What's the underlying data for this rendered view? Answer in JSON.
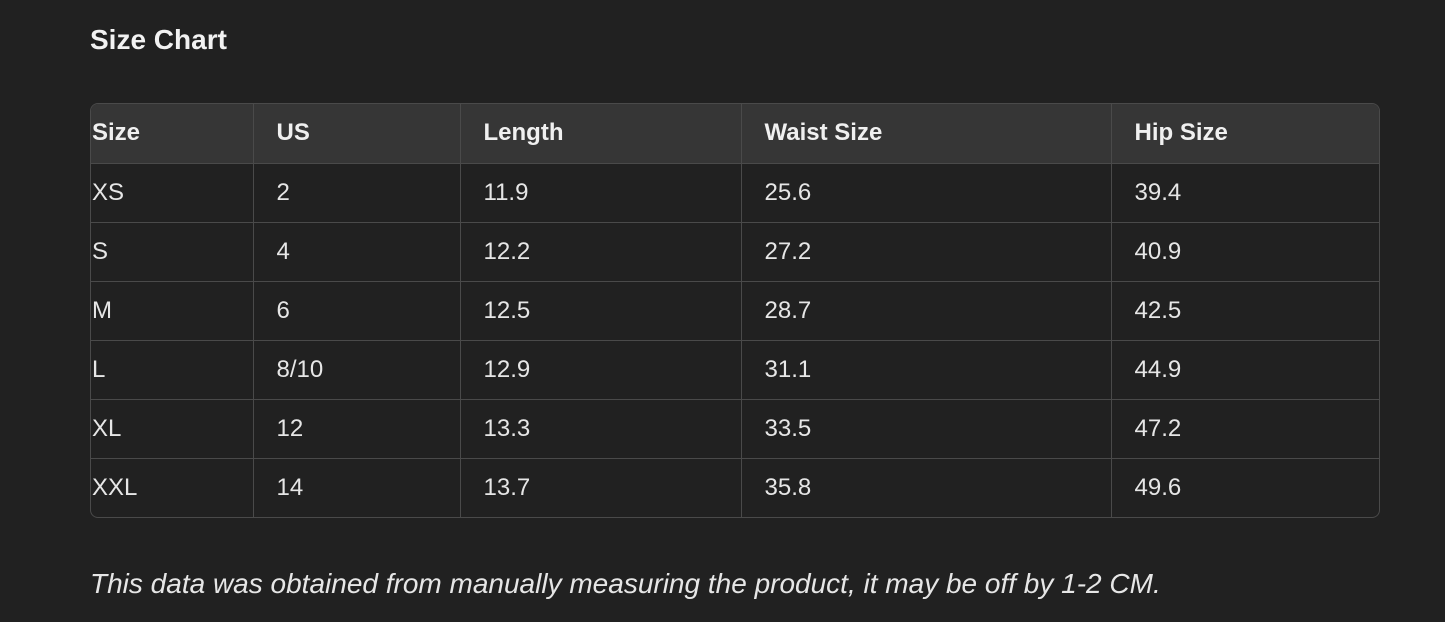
{
  "title": "Size Chart",
  "table": {
    "headers": [
      "Size",
      "US",
      "Length",
      "Waist Size",
      "Hip Size"
    ],
    "rows": [
      [
        "XS",
        "2",
        "11.9",
        "25.6",
        "39.4"
      ],
      [
        "S",
        "4",
        "12.2",
        "27.2",
        "40.9"
      ],
      [
        "M",
        "6",
        "12.5",
        "28.7",
        "42.5"
      ],
      [
        "L",
        "8/10",
        "12.9",
        "31.1",
        "44.9"
      ],
      [
        "XL",
        "12",
        "13.3",
        "33.5",
        "47.2"
      ],
      [
        "XXL",
        "14",
        "13.7",
        "35.8",
        "49.6"
      ]
    ]
  },
  "note": "This data was obtained from manually measuring the product, it may be off by 1-2 CM."
}
